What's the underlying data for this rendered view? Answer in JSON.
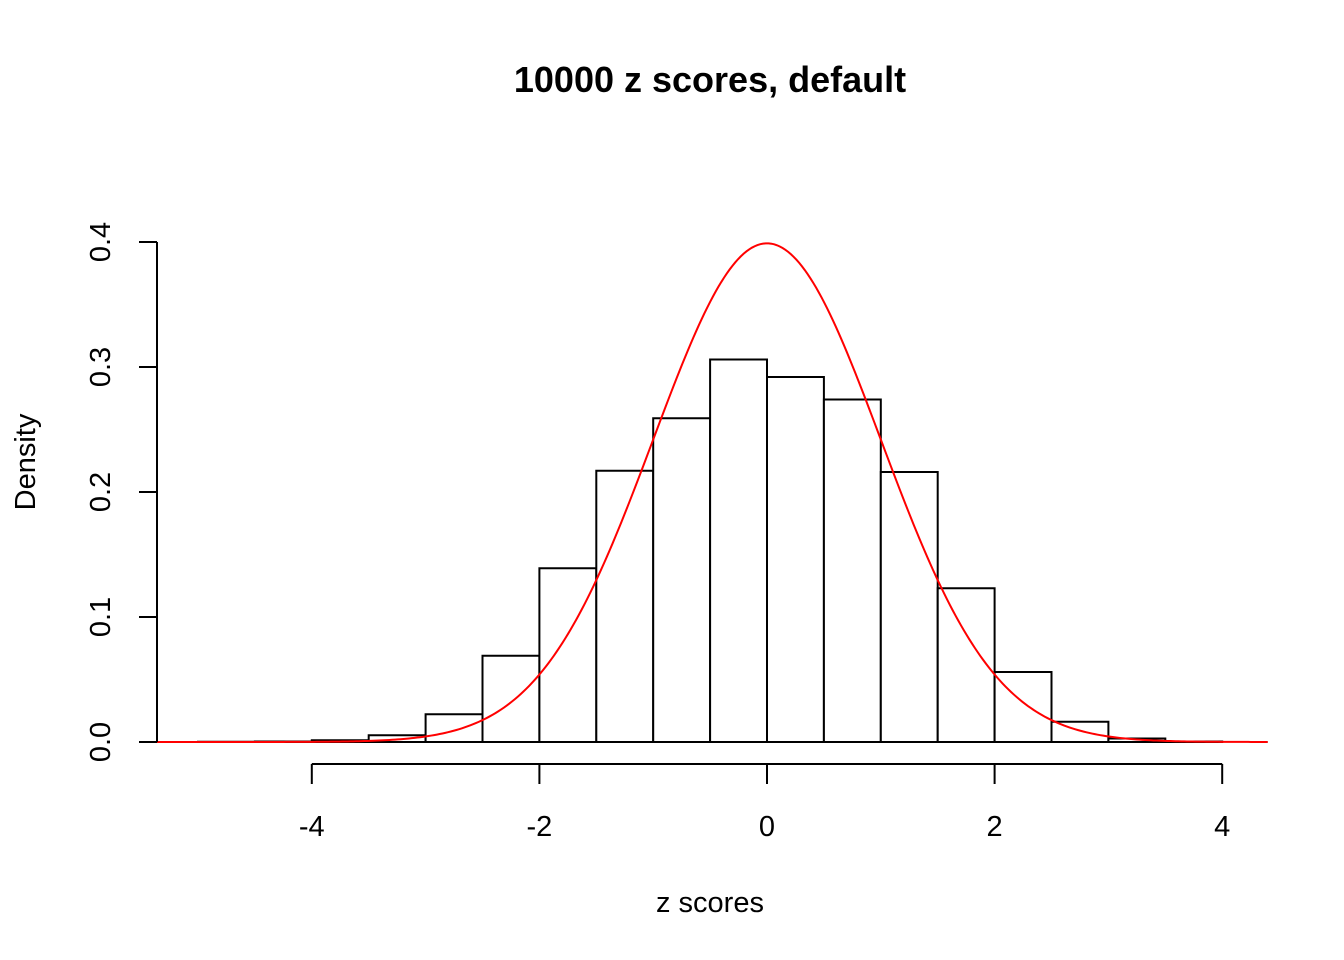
{
  "chart_data": {
    "type": "bar",
    "subtype": "histogram",
    "title": "10000 z scores, default",
    "xlabel": "z scores",
    "ylabel": "Density",
    "xlim": [
      -5.4,
      4.4
    ],
    "ylim": [
      0,
      0.4
    ],
    "x_ticks": [
      -4,
      -2,
      0,
      2,
      4
    ],
    "y_ticks": [
      0.0,
      0.1,
      0.2,
      0.3,
      0.4
    ],
    "x_tick_labels": [
      "-4",
      "-2",
      "0",
      "2",
      "4"
    ],
    "y_tick_labels": [
      "0.0",
      "0.1",
      "0.2",
      "0.3",
      "0.4"
    ],
    "bins": [
      {
        "start": -5.0,
        "end": -4.5,
        "density": 0.0002
      },
      {
        "start": -4.5,
        "end": -4.0,
        "density": 0.0004
      },
      {
        "start": -4.0,
        "end": -3.5,
        "density": 0.0014
      },
      {
        "start": -3.5,
        "end": -3.0,
        "density": 0.0054
      },
      {
        "start": -3.0,
        "end": -2.5,
        "density": 0.0222
      },
      {
        "start": -2.5,
        "end": -2.0,
        "density": 0.069
      },
      {
        "start": -2.0,
        "end": -1.5,
        "density": 0.139
      },
      {
        "start": -1.5,
        "end": -1.0,
        "density": 0.217
      },
      {
        "start": -1.0,
        "end": -0.5,
        "density": 0.259
      },
      {
        "start": -0.5,
        "end": 0.0,
        "density": 0.306
      },
      {
        "start": 0.0,
        "end": 0.5,
        "density": 0.292
      },
      {
        "start": 0.5,
        "end": 1.0,
        "density": 0.274
      },
      {
        "start": 1.0,
        "end": 1.5,
        "density": 0.216
      },
      {
        "start": 1.5,
        "end": 2.0,
        "density": 0.123
      },
      {
        "start": 2.0,
        "end": 2.5,
        "density": 0.056
      },
      {
        "start": 2.5,
        "end": 3.0,
        "density": 0.0162
      },
      {
        "start": 3.0,
        "end": 3.5,
        "density": 0.0028
      },
      {
        "start": 3.5,
        "end": 4.0,
        "density": 0.0004
      }
    ],
    "curve": {
      "type": "normal-density",
      "mean": 0,
      "sd": 1,
      "color": "#ff0000"
    },
    "bar_fill": "#ffffff",
    "bar_stroke": "#000000",
    "grid": false,
    "legend": "none"
  }
}
